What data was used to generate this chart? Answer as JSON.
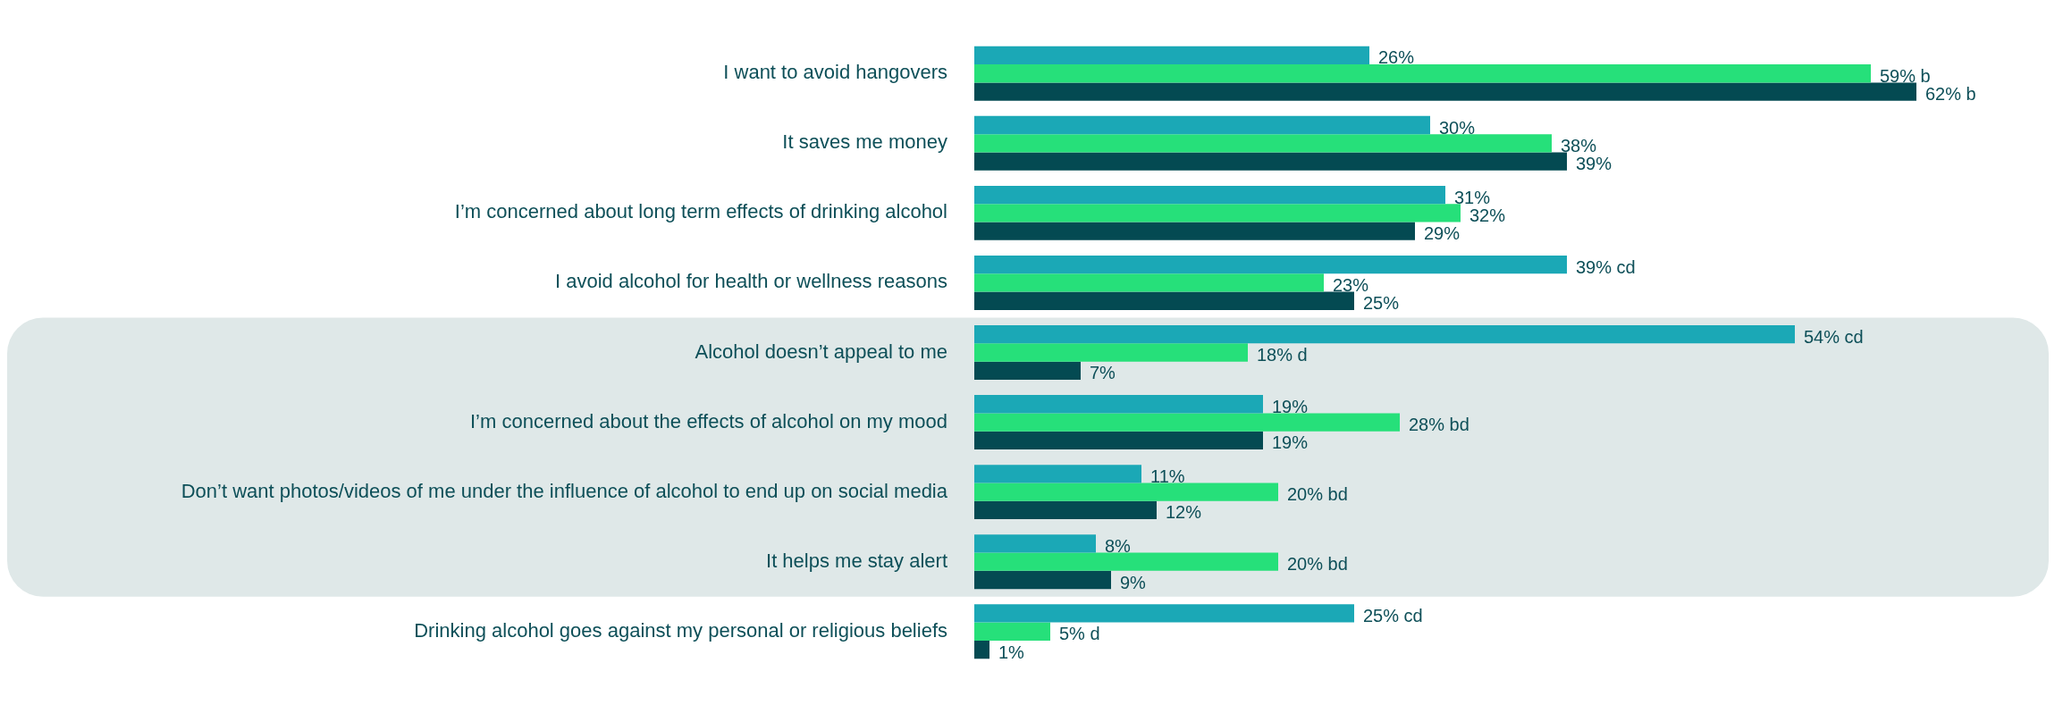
{
  "chart_data": {
    "type": "bar",
    "orientation": "horizontal",
    "categories": [
      "I want to avoid hangovers",
      "It saves me money",
      "I’m concerned about long term effects of drinking alcohol",
      "I avoid alcohol for health or wellness reasons",
      "Alcohol doesn’t appeal to me",
      "I’m concerned about the effects of alcohol on my mood",
      "Don’t want photos/videos of me under the influence of alcohol to end up on social media",
      "It helps me stay alert",
      "Drinking alcohol goes against my personal or religious beliefs"
    ],
    "series": [
      {
        "color": "#1ba8b6",
        "values": [
          26,
          30,
          31,
          39,
          54,
          19,
          11,
          8,
          25
        ],
        "value_labels": [
          "26%",
          "30%",
          "31%",
          "39% cd",
          "54% cd",
          "19%",
          "11%",
          "8%",
          "25% cd"
        ]
      },
      {
        "color": "#26e07a",
        "values": [
          59,
          38,
          32,
          23,
          18,
          28,
          20,
          20,
          5
        ],
        "value_labels": [
          "59% b",
          "38%",
          "32%",
          "23%",
          "18% d",
          "28% bd",
          "20% bd",
          "20% bd",
          "5% d"
        ]
      },
      {
        "color": "#044a52",
        "values": [
          62,
          39,
          29,
          25,
          7,
          19,
          12,
          9,
          1
        ],
        "value_labels": [
          "62% b",
          "39%",
          "29%",
          "25%",
          "7%",
          "19%",
          "12%",
          "9%",
          "1%"
        ]
      }
    ],
    "bands": [
      {
        "axis": "y",
        "from": "Alcohol doesn’t appeal to me",
        "to": "It helps me stay alert",
        "color": "#dfe8e8"
      }
    ],
    "grid": false,
    "legend": false
  }
}
